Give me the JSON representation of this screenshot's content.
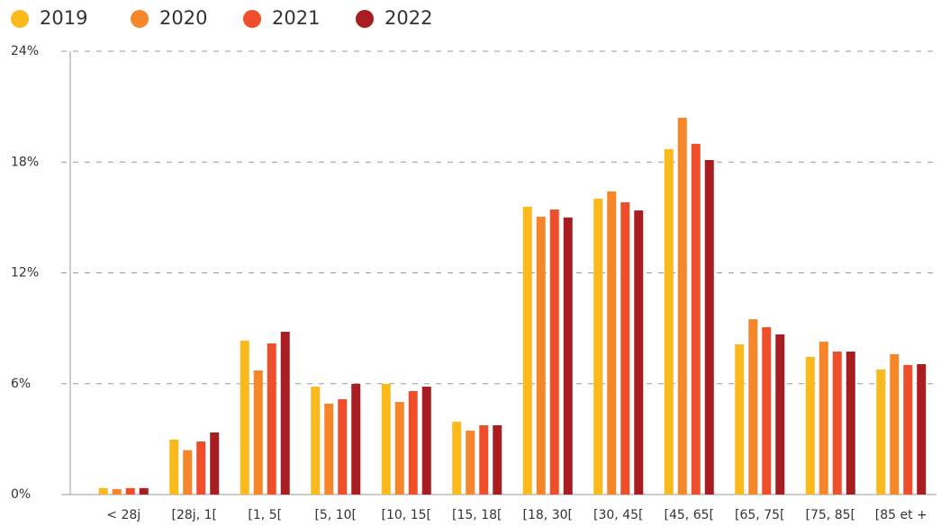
{
  "chart_data": {
    "type": "bar",
    "categories": [
      "< 28j",
      "[28j, 1[",
      "[1, 5[",
      "[5, 10[",
      "[10, 15[",
      "[15, 18[",
      "[18, 30[",
      "[30, 45[",
      "[45, 65[",
      "[65, 75[",
      "[75, 85[",
      "[85 et +"
    ],
    "series": [
      {
        "name": "2019",
        "color": "#fbb91b",
        "values": [
          0.35,
          2.97,
          8.33,
          5.84,
          5.99,
          3.94,
          15.58,
          16.02,
          18.7,
          8.13,
          7.45,
          6.77
        ]
      },
      {
        "name": "2020",
        "color": "#f5862a",
        "values": [
          0.3,
          2.4,
          6.72,
          4.92,
          5.01,
          3.46,
          15.04,
          16.41,
          20.4,
          9.49,
          8.28,
          7.6
        ]
      },
      {
        "name": "2021",
        "color": "#ee4f2a",
        "values": [
          0.35,
          2.87,
          8.18,
          5.16,
          5.6,
          3.75,
          15.43,
          15.82,
          18.99,
          9.06,
          7.74,
          7.01
        ]
      },
      {
        "name": "2022",
        "color": "#a81d21",
        "values": [
          0.35,
          3.36,
          8.81,
          5.99,
          5.84,
          3.75,
          15.0,
          15.38,
          18.11,
          8.67,
          7.74,
          7.06
        ]
      }
    ],
    "ylim": [
      0,
      24
    ],
    "yticks": [
      {
        "value": 0,
        "label": "0%"
      },
      {
        "value": 6,
        "label": "6%"
      },
      {
        "value": 12,
        "label": "12%"
      },
      {
        "value": 18,
        "label": "18%"
      },
      {
        "value": 24,
        "label": "24%"
      }
    ],
    "grid": true,
    "legend": "top-left"
  }
}
